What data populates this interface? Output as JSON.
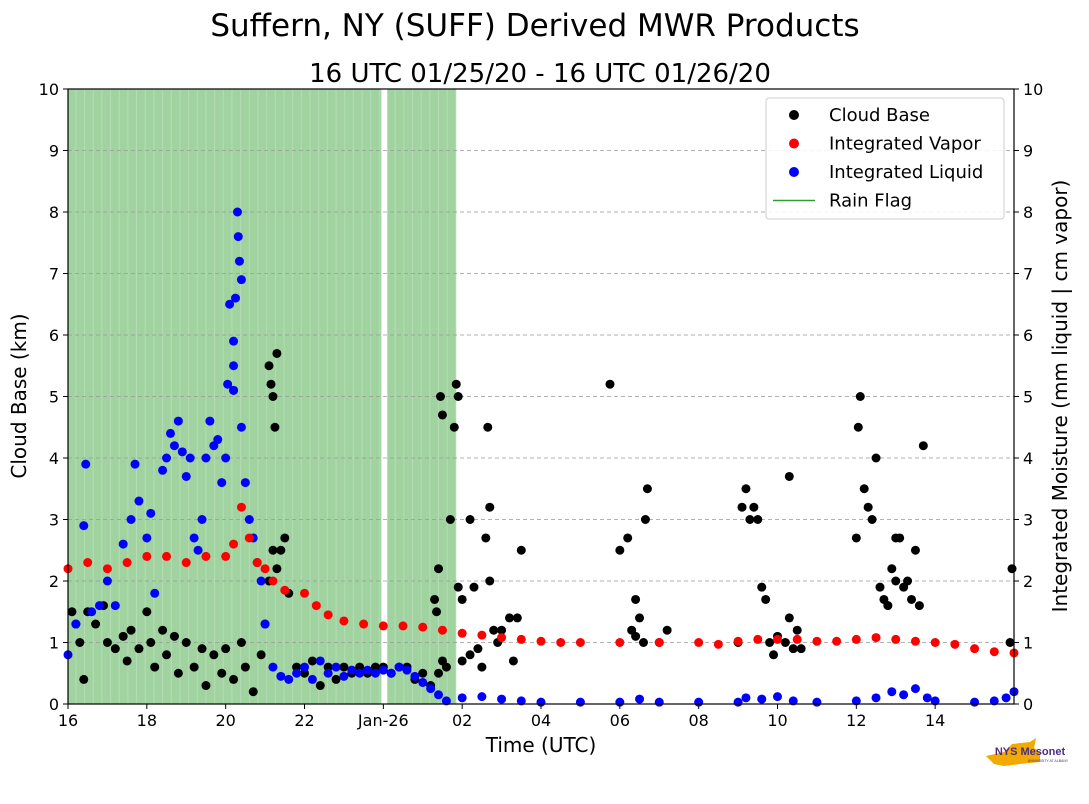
{
  "chart_data": {
    "type": "scatter",
    "title": "Suffern, NY (SUFF) Derived MWR Products",
    "subtitle": "16 UTC 01/25/20 - 16 UTC 01/26/20",
    "xlabel": "Time (UTC)",
    "ylabel_left": "Cloud Base (km)",
    "ylabel_right": "Integrated Moisture (mm liquid | cm vapor)",
    "x_unit": "hours since 16 UTC 01/25/20",
    "xlim": [
      0,
      24
    ],
    "ylim": [
      0,
      10
    ],
    "grid": true,
    "legend_position": "top-right",
    "x_ticks": [
      {
        "x": 0,
        "label": "16"
      },
      {
        "x": 2,
        "label": "18"
      },
      {
        "x": 4,
        "label": "20"
      },
      {
        "x": 6,
        "label": "22"
      },
      {
        "x": 8,
        "label": "Jan-26"
      },
      {
        "x": 10,
        "label": "02"
      },
      {
        "x": 12,
        "label": "04"
      },
      {
        "x": 14,
        "label": "06"
      },
      {
        "x": 16,
        "label": "08"
      },
      {
        "x": 18,
        "label": "10"
      },
      {
        "x": 20,
        "label": "12"
      },
      {
        "x": 22,
        "label": "14"
      }
    ],
    "y_ticks": [
      "0",
      "1",
      "2",
      "3",
      "4",
      "5",
      "6",
      "7",
      "8",
      "9",
      "10"
    ],
    "rain_flag_periods": [
      [
        0,
        7.95
      ],
      [
        8.1,
        9.85
      ]
    ],
    "legend": [
      {
        "label": "Cloud Base",
        "color": "#000000",
        "kind": "marker"
      },
      {
        "label": "Integrated Vapor",
        "color": "#ff0000",
        "kind": "marker"
      },
      {
        "label": "Integrated Liquid",
        "color": "#0000ff",
        "kind": "marker"
      },
      {
        "label": "Rain Flag",
        "color": "#2ca02c",
        "kind": "line"
      }
    ],
    "series": [
      {
        "name": "Cloud Base",
        "color": "#000000",
        "points": [
          [
            0.1,
            1.5
          ],
          [
            0.2,
            1.3
          ],
          [
            0.3,
            1.0
          ],
          [
            0.4,
            0.4
          ],
          [
            0.5,
            1.5
          ],
          [
            0.7,
            1.3
          ],
          [
            0.9,
            1.6
          ],
          [
            1.0,
            1.0
          ],
          [
            1.2,
            0.9
          ],
          [
            1.4,
            1.1
          ],
          [
            1.5,
            0.7
          ],
          [
            1.6,
            1.2
          ],
          [
            1.8,
            0.9
          ],
          [
            2.0,
            1.5
          ],
          [
            2.1,
            1.0
          ],
          [
            2.2,
            0.6
          ],
          [
            2.4,
            1.2
          ],
          [
            2.5,
            0.8
          ],
          [
            2.7,
            1.1
          ],
          [
            2.8,
            0.5
          ],
          [
            3.0,
            1.0
          ],
          [
            3.2,
            0.6
          ],
          [
            3.4,
            0.9
          ],
          [
            3.5,
            0.3
          ],
          [
            3.7,
            0.8
          ],
          [
            3.9,
            0.5
          ],
          [
            4.0,
            0.9
          ],
          [
            4.2,
            0.4
          ],
          [
            4.4,
            1.0
          ],
          [
            4.5,
            0.6
          ],
          [
            4.7,
            0.2
          ],
          [
            4.9,
            0.8
          ],
          [
            5.0,
            1.3
          ],
          [
            5.1,
            2.0
          ],
          [
            5.2,
            2.5
          ],
          [
            5.3,
            2.2
          ],
          [
            5.1,
            5.5
          ],
          [
            5.15,
            5.2
          ],
          [
            5.2,
            5.0
          ],
          [
            5.25,
            4.5
          ],
          [
            5.3,
            5.7
          ],
          [
            5.4,
            2.5
          ],
          [
            5.5,
            2.7
          ],
          [
            5.6,
            1.8
          ],
          [
            5.8,
            0.6
          ],
          [
            6.0,
            0.5
          ],
          [
            6.2,
            0.7
          ],
          [
            6.4,
            0.3
          ],
          [
            6.6,
            0.6
          ],
          [
            6.8,
            0.4
          ],
          [
            7.0,
            0.6
          ],
          [
            7.2,
            0.5
          ],
          [
            7.4,
            0.6
          ],
          [
            7.6,
            0.5
          ],
          [
            7.8,
            0.6
          ],
          [
            8.0,
            0.6
          ],
          [
            8.2,
            0.5
          ],
          [
            8.4,
            0.6
          ],
          [
            8.6,
            0.6
          ],
          [
            8.8,
            0.4
          ],
          [
            9.0,
            0.5
          ],
          [
            9.2,
            0.3
          ],
          [
            9.4,
            0.5
          ],
          [
            9.5,
            0.7
          ],
          [
            9.6,
            0.6
          ],
          [
            9.3,
            1.7
          ],
          [
            9.35,
            1.5
          ],
          [
            9.4,
            2.2
          ],
          [
            9.45,
            5.0
          ],
          [
            9.5,
            4.7
          ],
          [
            9.7,
            3.0
          ],
          [
            9.8,
            4.5
          ],
          [
            9.85,
            5.2
          ],
          [
            9.9,
            5.0
          ],
          [
            9.9,
            1.9
          ],
          [
            10.0,
            1.7
          ],
          [
            10.0,
            0.7
          ],
          [
            10.2,
            0.8
          ],
          [
            10.2,
            3.0
          ],
          [
            10.3,
            1.9
          ],
          [
            10.4,
            0.9
          ],
          [
            10.5,
            0.6
          ],
          [
            10.6,
            2.7
          ],
          [
            10.65,
            4.5
          ],
          [
            10.7,
            3.2
          ],
          [
            10.7,
            2.0
          ],
          [
            10.8,
            1.2
          ],
          [
            10.9,
            1.0
          ],
          [
            11.0,
            1.2
          ],
          [
            11.2,
            1.4
          ],
          [
            11.3,
            0.7
          ],
          [
            11.4,
            1.4
          ],
          [
            11.5,
            2.5
          ],
          [
            14.0,
            2.5
          ],
          [
            14.3,
            1.2
          ],
          [
            14.4,
            1.1
          ],
          [
            14.5,
            1.4
          ],
          [
            14.6,
            1.0
          ],
          [
            14.65,
            3.0
          ],
          [
            14.7,
            3.5
          ],
          [
            13.75,
            5.2
          ],
          [
            15.0,
            1.0
          ],
          [
            15.2,
            1.2
          ],
          [
            14.2,
            2.7
          ],
          [
            14.4,
            1.7
          ],
          [
            17.0,
            1.0
          ],
          [
            17.1,
            3.2
          ],
          [
            17.2,
            3.5
          ],
          [
            17.3,
            3.0
          ],
          [
            17.4,
            3.2
          ],
          [
            17.5,
            3.0
          ],
          [
            17.6,
            1.9
          ],
          [
            17.7,
            1.7
          ],
          [
            17.8,
            1.0
          ],
          [
            17.9,
            0.8
          ],
          [
            18.0,
            1.1
          ],
          [
            18.2,
            1.0
          ],
          [
            18.3,
            1.4
          ],
          [
            18.4,
            0.9
          ],
          [
            18.5,
            1.2
          ],
          [
            18.6,
            0.9
          ],
          [
            18.3,
            3.7
          ],
          [
            20.0,
            2.7
          ],
          [
            20.05,
            4.5
          ],
          [
            20.1,
            5.0
          ],
          [
            20.2,
            3.5
          ],
          [
            20.3,
            3.2
          ],
          [
            20.4,
            3.0
          ],
          [
            20.5,
            4.0
          ],
          [
            20.6,
            1.9
          ],
          [
            20.7,
            1.7
          ],
          [
            20.8,
            1.6
          ],
          [
            20.9,
            2.2
          ],
          [
            21.0,
            2.0
          ],
          [
            21.1,
            2.7
          ],
          [
            21.2,
            1.9
          ],
          [
            21.3,
            2.0
          ],
          [
            21.4,
            1.7
          ],
          [
            21.5,
            2.5
          ],
          [
            21.6,
            1.6
          ],
          [
            21.7,
            4.2
          ],
          [
            21.0,
            2.7
          ],
          [
            23.9,
            1.0
          ],
          [
            23.95,
            2.2
          ]
        ]
      },
      {
        "name": "Integrated Vapor",
        "color": "#ff0000",
        "points": [
          [
            0,
            2.2
          ],
          [
            0.5,
            2.3
          ],
          [
            1,
            2.2
          ],
          [
            1.5,
            2.3
          ],
          [
            2,
            2.4
          ],
          [
            2.5,
            2.4
          ],
          [
            3,
            2.3
          ],
          [
            3.5,
            2.4
          ],
          [
            4,
            2.4
          ],
          [
            4.2,
            2.6
          ],
          [
            4.4,
            3.2
          ],
          [
            4.6,
            2.7
          ],
          [
            4.8,
            2.3
          ],
          [
            5.0,
            2.2
          ],
          [
            5.2,
            2.0
          ],
          [
            5.5,
            1.85
          ],
          [
            6.0,
            1.8
          ],
          [
            6.3,
            1.6
          ],
          [
            6.6,
            1.45
          ],
          [
            7,
            1.35
          ],
          [
            7.5,
            1.3
          ],
          [
            8,
            1.27
          ],
          [
            8.5,
            1.27
          ],
          [
            9,
            1.25
          ],
          [
            9.5,
            1.2
          ],
          [
            10,
            1.15
          ],
          [
            10.5,
            1.12
          ],
          [
            11,
            1.08
          ],
          [
            11.5,
            1.05
          ],
          [
            12,
            1.02
          ],
          [
            12.5,
            1.0
          ],
          [
            13,
            1.0
          ],
          [
            14,
            1.0
          ],
          [
            15,
            1.0
          ],
          [
            16,
            1.0
          ],
          [
            16.5,
            0.97
          ],
          [
            17,
            1.02
          ],
          [
            17.5,
            1.05
          ],
          [
            18,
            1.05
          ],
          [
            18.5,
            1.05
          ],
          [
            19,
            1.02
          ],
          [
            19.5,
            1.02
          ],
          [
            20,
            1.05
          ],
          [
            20.5,
            1.08
          ],
          [
            21,
            1.05
          ],
          [
            21.5,
            1.02
          ],
          [
            22,
            1.0
          ],
          [
            22.5,
            0.97
          ],
          [
            23,
            0.9
          ],
          [
            23.5,
            0.85
          ],
          [
            24,
            0.83
          ]
        ]
      },
      {
        "name": "Integrated Liquid",
        "color": "#0000ff",
        "points": [
          [
            0,
            0.8
          ],
          [
            0.2,
            1.3
          ],
          [
            0.4,
            2.9
          ],
          [
            0.45,
            3.9
          ],
          [
            0.6,
            1.5
          ],
          [
            0.8,
            1.6
          ],
          [
            1.0,
            2.0
          ],
          [
            1.2,
            1.6
          ],
          [
            1.4,
            2.6
          ],
          [
            1.6,
            3.0
          ],
          [
            1.7,
            3.9
          ],
          [
            1.8,
            3.3
          ],
          [
            2.0,
            2.7
          ],
          [
            2.1,
            3.1
          ],
          [
            2.2,
            1.8
          ],
          [
            2.4,
            3.8
          ],
          [
            2.5,
            4.0
          ],
          [
            2.6,
            4.4
          ],
          [
            2.7,
            4.2
          ],
          [
            2.8,
            4.6
          ],
          [
            2.9,
            4.1
          ],
          [
            3.0,
            3.7
          ],
          [
            3.1,
            4.0
          ],
          [
            3.2,
            2.7
          ],
          [
            3.3,
            2.5
          ],
          [
            3.4,
            3.0
          ],
          [
            3.5,
            4.0
          ],
          [
            3.6,
            4.6
          ],
          [
            3.7,
            4.2
          ],
          [
            3.8,
            4.3
          ],
          [
            3.9,
            3.6
          ],
          [
            4.0,
            4.0
          ],
          [
            4.05,
            5.2
          ],
          [
            4.1,
            6.5
          ],
          [
            4.2,
            5.1
          ],
          [
            4.25,
            6.6
          ],
          [
            4.3,
            8.0
          ],
          [
            4.32,
            7.6
          ],
          [
            4.35,
            7.2
          ],
          [
            4.4,
            6.9
          ],
          [
            4.2,
            5.9
          ],
          [
            4.2,
            5.5
          ],
          [
            4.2,
            5.1
          ],
          [
            4.4,
            4.5
          ],
          [
            4.5,
            3.6
          ],
          [
            4.6,
            3.0
          ],
          [
            4.7,
            2.7
          ],
          [
            4.8,
            2.3
          ],
          [
            4.9,
            2.0
          ],
          [
            5.0,
            1.3
          ],
          [
            5.2,
            0.6
          ],
          [
            5.4,
            0.45
          ],
          [
            5.6,
            0.4
          ],
          [
            5.8,
            0.5
          ],
          [
            6.0,
            0.6
          ],
          [
            6.2,
            0.4
          ],
          [
            6.4,
            0.7
          ],
          [
            6.6,
            0.5
          ],
          [
            6.8,
            0.6
          ],
          [
            7.0,
            0.45
          ],
          [
            7.2,
            0.55
          ],
          [
            7.4,
            0.5
          ],
          [
            7.6,
            0.55
          ],
          [
            7.8,
            0.5
          ],
          [
            8.0,
            0.55
          ],
          [
            8.2,
            0.5
          ],
          [
            8.4,
            0.6
          ],
          [
            8.6,
            0.55
          ],
          [
            8.8,
            0.45
          ],
          [
            9.0,
            0.35
          ],
          [
            9.2,
            0.25
          ],
          [
            9.4,
            0.15
          ],
          [
            9.6,
            0.05
          ],
          [
            10,
            0.1
          ],
          [
            10.5,
            0.12
          ],
          [
            11,
            0.08
          ],
          [
            11.5,
            0.05
          ],
          [
            12,
            0.03
          ],
          [
            13,
            0.03
          ],
          [
            14,
            0.03
          ],
          [
            14.5,
            0.08
          ],
          [
            15,
            0.03
          ],
          [
            16,
            0.03
          ],
          [
            17,
            0.03
          ],
          [
            17.2,
            0.1
          ],
          [
            17.6,
            0.08
          ],
          [
            18,
            0.12
          ],
          [
            18.4,
            0.05
          ],
          [
            19,
            0.03
          ],
          [
            20,
            0.05
          ],
          [
            20.5,
            0.1
          ],
          [
            20.9,
            0.2
          ],
          [
            21.2,
            0.15
          ],
          [
            21.5,
            0.25
          ],
          [
            21.8,
            0.1
          ],
          [
            22,
            0.05
          ],
          [
            23,
            0.03
          ],
          [
            23.5,
            0.05
          ],
          [
            23.8,
            0.1
          ],
          [
            24,
            0.2
          ]
        ]
      }
    ]
  },
  "logo": {
    "brand": "NYS Mesonet",
    "subtext": "UNIVERSITY AT ALBANY"
  }
}
